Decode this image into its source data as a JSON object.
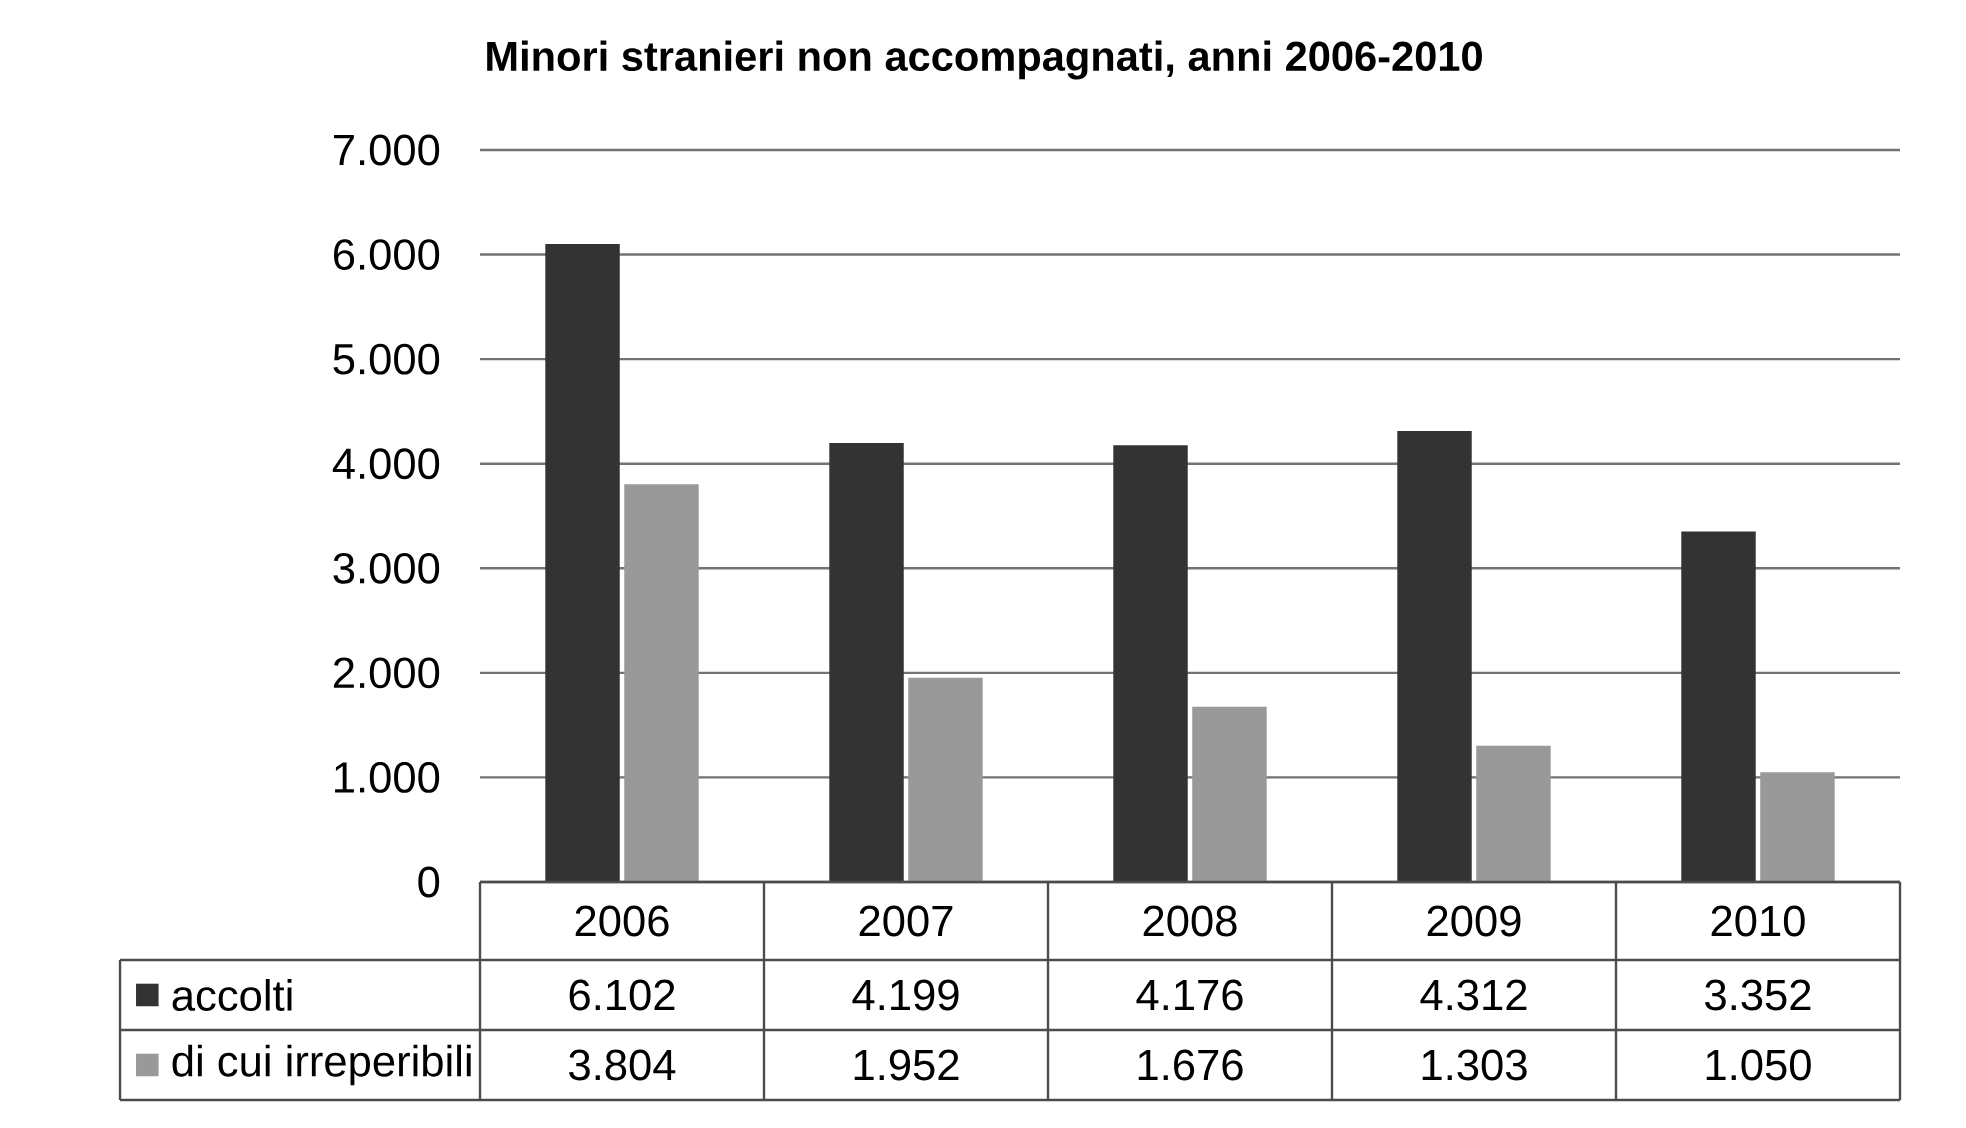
{
  "chart_data": {
    "type": "bar",
    "title": "Minori stranieri non accompagnati, anni 2006-2010",
    "categories": [
      "2006",
      "2007",
      "2008",
      "2009",
      "2010"
    ],
    "series": [
      {
        "name": "accolti",
        "color": "#333333",
        "values": [
          6102,
          4199,
          4176,
          4312,
          3352
        ],
        "value_labels": [
          "6.102",
          "4.199",
          "4.176",
          "4.312",
          "3.352"
        ]
      },
      {
        "name": "di cui irreperibili",
        "color": "#999999",
        "values": [
          3804,
          1952,
          1676,
          1303,
          1050
        ],
        "value_labels": [
          "3.804",
          "1.952",
          "1.676",
          "1.303",
          "1.050"
        ]
      }
    ],
    "ylim": [
      0,
      7000
    ],
    "yticks": [
      0,
      {
        "value": 1000,
        "label": "1.000"
      },
      {
        "value": 2000,
        "label": "2.000"
      },
      {
        "value": 3000,
        "label": "3.000"
      },
      {
        "value": 4000,
        "label": "4.000"
      },
      {
        "value": 5000,
        "label": "5.000"
      },
      {
        "value": 6000,
        "label": "6.000"
      },
      {
        "value": 7000,
        "label": "7.000"
      }
    ],
    "grid": "y",
    "legend": "bottom"
  }
}
